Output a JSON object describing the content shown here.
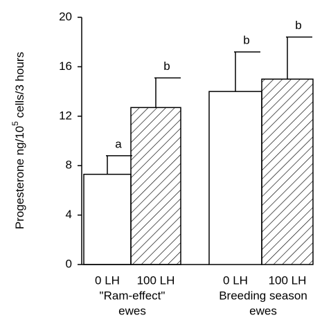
{
  "chart_data": {
    "type": "bar",
    "y_label": {
      "before": "Progesterone ng/10",
      "sup": "5",
      "after": " cells/3 hours"
    },
    "categories": [
      "0 LH",
      "100 LH",
      "0 LH",
      "100 LH"
    ],
    "groups": [
      {
        "lines": [
          "\"Ram-effect\"",
          "ewes"
        ]
      },
      {
        "lines": [
          "Breeding season",
          "ewes"
        ]
      }
    ],
    "values": [
      7.3,
      12.7,
      14.0,
      15.0
    ],
    "errors": [
      1.5,
      2.4,
      3.2,
      3.4
    ],
    "annotations": [
      "a",
      "b",
      "b",
      "b"
    ],
    "patterns": [
      "none",
      "hatch",
      "none",
      "hatch"
    ],
    "color": "#000000",
    "ylim": [
      0,
      20
    ],
    "yticks": [
      0,
      4,
      8,
      12,
      16,
      20
    ]
  }
}
